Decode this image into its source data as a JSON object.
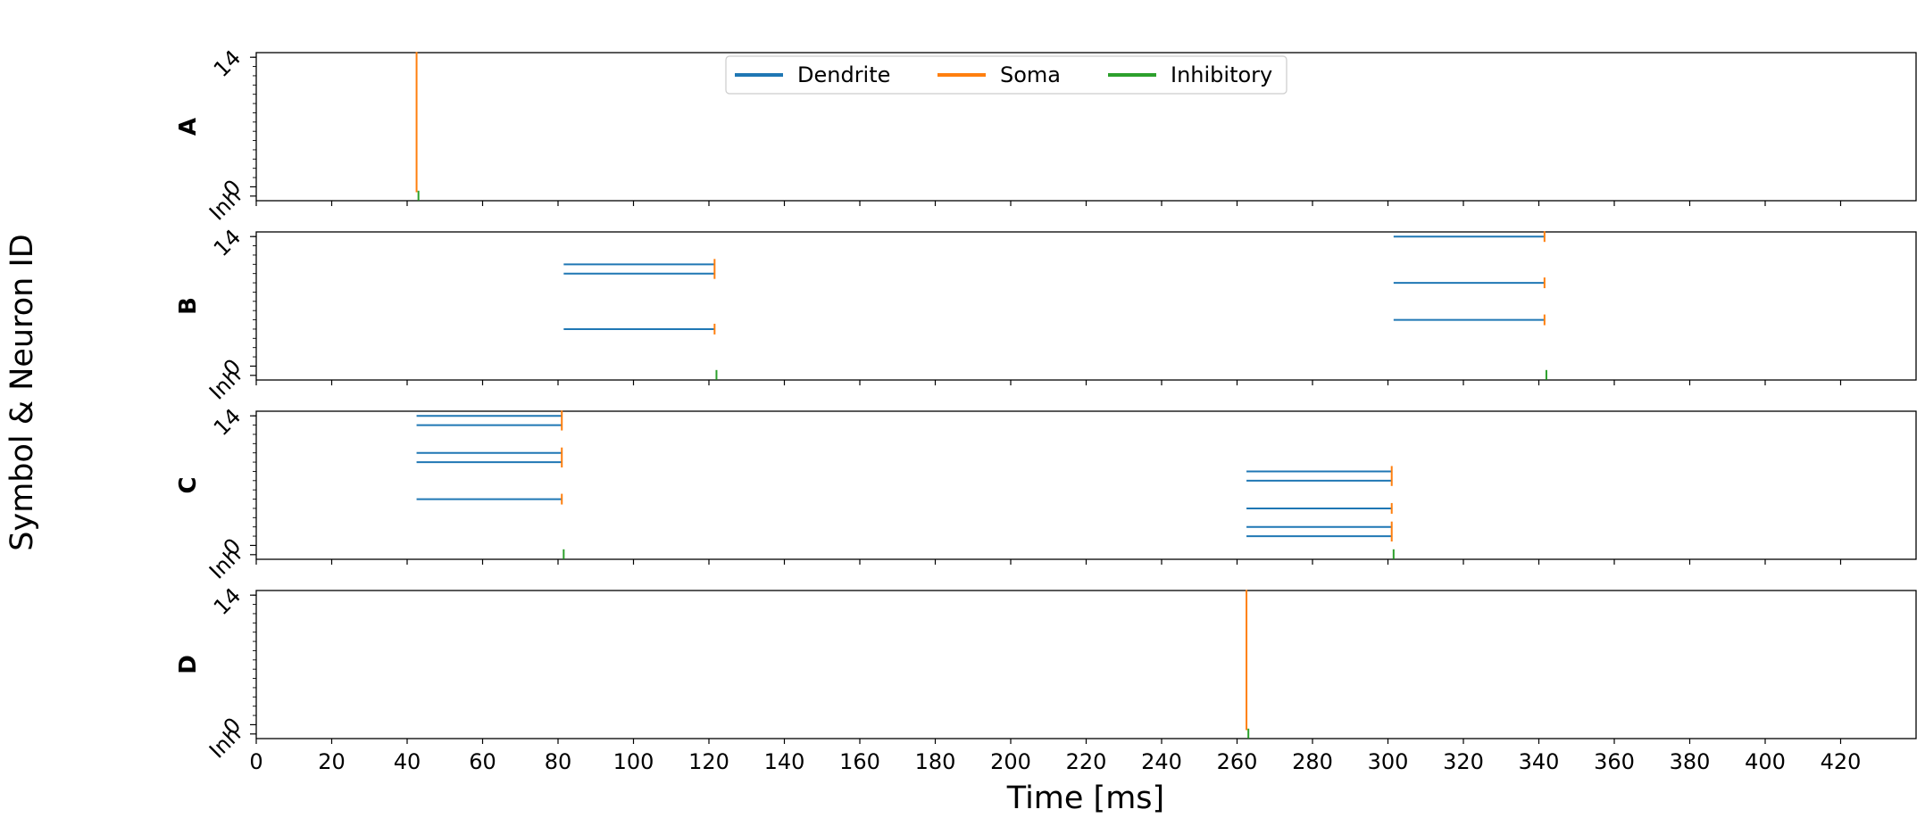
{
  "chart_data": {
    "type": "event_raster",
    "xlabel": "Time [ms]",
    "ylabel": "Symbol & Neuron ID",
    "xlim": [
      0,
      440
    ],
    "x_ticks": [
      0,
      20,
      40,
      60,
      80,
      100,
      120,
      140,
      160,
      180,
      200,
      220,
      240,
      260,
      280,
      300,
      320,
      340,
      360,
      380,
      400,
      420
    ],
    "y_range": [
      -1.5,
      14.5
    ],
    "y_tick_labels": [
      "Inh",
      "0",
      "14"
    ],
    "legend": {
      "placement": "top-center",
      "entries": [
        {
          "name": "Dendrite",
          "color": "#1f77b4"
        },
        {
          "name": "Soma",
          "color": "#ff7f0e"
        },
        {
          "name": "Inhibitory",
          "color": "#2ca02c"
        }
      ]
    },
    "panels": [
      {
        "label": "A",
        "dendrite": [],
        "soma": [
          {
            "x": 42.5,
            "y0": 0.0,
            "y1": 14.0
          }
        ],
        "inhibitory": [
          {
            "x": 43.0
          }
        ]
      },
      {
        "label": "B",
        "dendrite": [
          {
            "y": 11,
            "x0": 81.5,
            "x1": 121.5
          },
          {
            "y": 10,
            "x0": 81.5,
            "x1": 121.5
          },
          {
            "y": 4,
            "x0": 81.5,
            "x1": 121.5
          },
          {
            "y": 14,
            "x0": 301.5,
            "x1": 341.5
          },
          {
            "y": 9,
            "x0": 301.5,
            "x1": 341.5
          },
          {
            "y": 5,
            "x0": 301.5,
            "x1": 341.5
          }
        ],
        "soma": [
          {
            "x": 121.5,
            "y0": 10,
            "y1": 11
          },
          {
            "x": 121.5,
            "y0": 4,
            "y1": 4
          },
          {
            "x": 341.5,
            "y0": 14,
            "y1": 14
          },
          {
            "x": 341.5,
            "y0": 9,
            "y1": 9
          },
          {
            "x": 341.5,
            "y0": 5,
            "y1": 5
          }
        ],
        "inhibitory": [
          {
            "x": 122.0
          },
          {
            "x": 342.0
          }
        ]
      },
      {
        "label": "C",
        "dendrite": [
          {
            "y": 14,
            "x0": 42.5,
            "x1": 81.0
          },
          {
            "y": 13,
            "x0": 42.5,
            "x1": 81.0
          },
          {
            "y": 10,
            "x0": 42.5,
            "x1": 81.0
          },
          {
            "y": 9,
            "x0": 42.5,
            "x1": 81.0
          },
          {
            "y": 5,
            "x0": 42.5,
            "x1": 81.0
          },
          {
            "y": 8,
            "x0": 262.5,
            "x1": 301.0
          },
          {
            "y": 7,
            "x0": 262.5,
            "x1": 301.0
          },
          {
            "y": 4,
            "x0": 262.5,
            "x1": 301.0
          },
          {
            "y": 2,
            "x0": 262.5,
            "x1": 301.0
          },
          {
            "y": 1,
            "x0": 262.5,
            "x1": 301.0
          }
        ],
        "soma": [
          {
            "x": 81.0,
            "y0": 13,
            "y1": 14
          },
          {
            "x": 81.0,
            "y0": 9,
            "y1": 10
          },
          {
            "x": 81.0,
            "y0": 5,
            "y1": 5
          },
          {
            "x": 301.0,
            "y0": 7,
            "y1": 8
          },
          {
            "x": 301.0,
            "y0": 4,
            "y1": 4
          },
          {
            "x": 301.0,
            "y0": 1,
            "y1": 2
          }
        ],
        "inhibitory": [
          {
            "x": 81.5
          },
          {
            "x": 301.5
          }
        ]
      },
      {
        "label": "D",
        "dendrite": [],
        "soma": [
          {
            "x": 262.5,
            "y0": 0.0,
            "y1": 14.0
          }
        ],
        "inhibitory": [
          {
            "x": 263.0
          }
        ]
      }
    ]
  }
}
